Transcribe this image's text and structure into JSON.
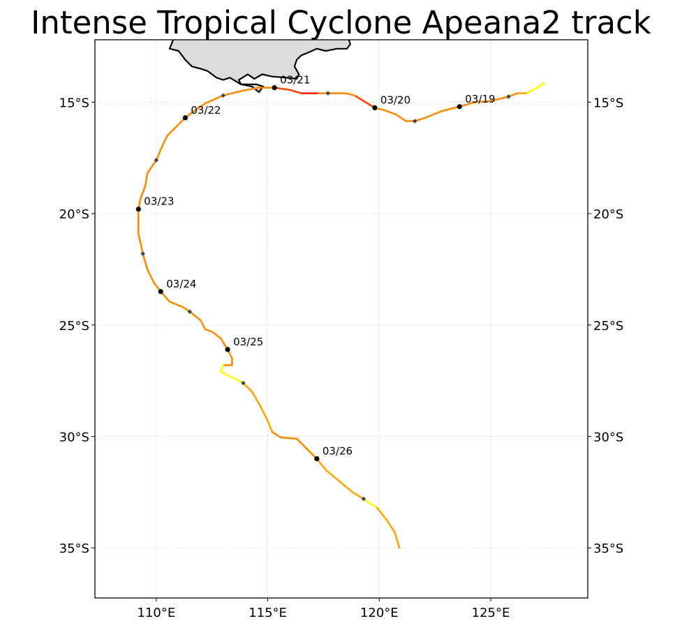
{
  "title": "Intense Tropical Cyclone Apeana2 track",
  "map": {
    "lon_range": [
      107.25,
      129.35
    ],
    "lat_range": [
      -37.25,
      -12.2
    ],
    "lon_ticks": [
      {
        "value": 110,
        "label": "110°E"
      },
      {
        "value": 115,
        "label": "115°E"
      },
      {
        "value": 120,
        "label": "120°E"
      },
      {
        "value": 125,
        "label": "125°E"
      }
    ],
    "lat_ticks": [
      {
        "value": -15,
        "label": "15°S"
      },
      {
        "value": -20,
        "label": "20°S"
      },
      {
        "value": -25,
        "label": "25°S"
      },
      {
        "value": -30,
        "label": "30°S"
      },
      {
        "value": -35,
        "label": "35°S"
      }
    ],
    "grid": true,
    "land_color": "#dcdcdc",
    "coast_color": "#000000",
    "land_polygon": [
      [
        110.8,
        -12.1
      ],
      [
        110.6,
        -12.6
      ],
      [
        111.0,
        -12.7
      ],
      [
        111.3,
        -13.1
      ],
      [
        111.6,
        -13.4
      ],
      [
        112.0,
        -13.5
      ],
      [
        112.3,
        -13.6
      ],
      [
        112.7,
        -13.9
      ],
      [
        113.0,
        -14.0
      ],
      [
        113.3,
        -13.9
      ],
      [
        113.8,
        -14.2
      ],
      [
        114.3,
        -14.2
      ],
      [
        114.5,
        -14.2
      ],
      [
        114.8,
        -14.3
      ],
      [
        114.6,
        -14.55
      ],
      [
        114.3,
        -14.3
      ],
      [
        113.8,
        -14.2
      ],
      [
        113.7,
        -14.0
      ],
      [
        113.95,
        -13.85
      ],
      [
        114.1,
        -13.75
      ],
      [
        114.4,
        -13.95
      ],
      [
        114.75,
        -13.75
      ],
      [
        115.2,
        -13.85
      ],
      [
        115.8,
        -13.9
      ],
      [
        116.3,
        -13.95
      ],
      [
        116.4,
        -13.75
      ],
      [
        116.2,
        -13.4
      ],
      [
        116.3,
        -13.1
      ],
      [
        116.5,
        -12.9
      ],
      [
        116.75,
        -12.8
      ],
      [
        117.2,
        -12.6
      ],
      [
        117.6,
        -12.7
      ],
      [
        118.1,
        -12.6
      ],
      [
        118.55,
        -12.6
      ],
      [
        118.7,
        -12.4
      ],
      [
        118.6,
        -12.1
      ]
    ]
  },
  "track": {
    "points": [
      {
        "lon": 127.4,
        "lat": -14.15,
        "c": "#ffff00"
      },
      {
        "lon": 127.0,
        "lat": -14.4,
        "c": "#ffff00"
      },
      {
        "lon": 126.6,
        "lat": -14.6,
        "c": "#ffa500"
      },
      {
        "lon": 126.2,
        "lat": -14.6,
        "c": "#ff8c00"
      },
      {
        "lon": 125.8,
        "lat": -14.75,
        "c": "#ff8c00"
      },
      {
        "lon": 125.0,
        "lat": -14.95,
        "c": "#ff8c00"
      },
      {
        "lon": 124.3,
        "lat": -15.0,
        "c": "#ff8c00"
      },
      {
        "lon": 123.6,
        "lat": -15.2,
        "c": "#ff8c00"
      },
      {
        "lon": 122.8,
        "lat": -15.4,
        "c": "#ff8c00"
      },
      {
        "lon": 122.2,
        "lat": -15.65,
        "c": "#ff8c00"
      },
      {
        "lon": 121.6,
        "lat": -15.85,
        "c": "#ff8c00"
      },
      {
        "lon": 121.2,
        "lat": -15.85,
        "c": "#ff8c00"
      },
      {
        "lon": 120.75,
        "lat": -15.55,
        "c": "#ff8c00"
      },
      {
        "lon": 120.2,
        "lat": -15.35,
        "c": "#ff8c00"
      },
      {
        "lon": 119.8,
        "lat": -15.25,
        "c": "#ff4500"
      },
      {
        "lon": 119.3,
        "lat": -14.95,
        "c": "#ff4500"
      },
      {
        "lon": 118.9,
        "lat": -14.7,
        "c": "#ff8c00"
      },
      {
        "lon": 118.5,
        "lat": -14.6,
        "c": "#ff8c00"
      },
      {
        "lon": 117.7,
        "lat": -14.6,
        "c": "#ff8c00"
      },
      {
        "lon": 117.2,
        "lat": -14.6,
        "c": "#ff2000"
      },
      {
        "lon": 116.5,
        "lat": -14.6,
        "c": "#ff4500"
      },
      {
        "lon": 116.0,
        "lat": -14.45,
        "c": "#ff4500"
      },
      {
        "lon": 115.3,
        "lat": -14.35,
        "c": "#ff8c00"
      },
      {
        "lon": 114.6,
        "lat": -14.35,
        "c": "#ff8c00"
      },
      {
        "lon": 113.8,
        "lat": -14.5,
        "c": "#ff8c00"
      },
      {
        "lon": 113.0,
        "lat": -14.7,
        "c": "#ff8c00"
      },
      {
        "lon": 112.2,
        "lat": -15.05,
        "c": "#ff8c00"
      },
      {
        "lon": 111.7,
        "lat": -15.4,
        "c": "#ff8c00"
      },
      {
        "lon": 111.3,
        "lat": -15.7,
        "c": "#ff8c00"
      },
      {
        "lon": 110.9,
        "lat": -16.1,
        "c": "#ff8c00"
      },
      {
        "lon": 110.5,
        "lat": -16.5,
        "c": "#ff8c00"
      },
      {
        "lon": 110.3,
        "lat": -16.9,
        "c": "#ff8c00"
      },
      {
        "lon": 110.0,
        "lat": -17.6,
        "c": "#ff8c00"
      },
      {
        "lon": 109.6,
        "lat": -18.2,
        "c": "#ff8c00"
      },
      {
        "lon": 109.5,
        "lat": -18.8,
        "c": "#ff8c00"
      },
      {
        "lon": 109.3,
        "lat": -19.3,
        "c": "#ff8c00"
      },
      {
        "lon": 109.2,
        "lat": -19.8,
        "c": "#ff8c00"
      },
      {
        "lon": 109.2,
        "lat": -20.9,
        "c": "#ff8c00"
      },
      {
        "lon": 109.4,
        "lat": -21.8,
        "c": "#ff8c00"
      },
      {
        "lon": 109.6,
        "lat": -22.5,
        "c": "#ff8c00"
      },
      {
        "lon": 109.9,
        "lat": -23.1,
        "c": "#ff8c00"
      },
      {
        "lon": 110.2,
        "lat": -23.5,
        "c": "#ff8c00"
      },
      {
        "lon": 110.6,
        "lat": -23.95,
        "c": "#ff8c00"
      },
      {
        "lon": 111.2,
        "lat": -24.2,
        "c": "#ff8c00"
      },
      {
        "lon": 111.5,
        "lat": -24.4,
        "c": "#ff8c00"
      },
      {
        "lon": 112.0,
        "lat": -24.8,
        "c": "#ff8c00"
      },
      {
        "lon": 112.2,
        "lat": -25.2,
        "c": "#ff8c00"
      },
      {
        "lon": 112.5,
        "lat": -25.3,
        "c": "#ff8c00"
      },
      {
        "lon": 112.9,
        "lat": -25.6,
        "c": "#ff8c00"
      },
      {
        "lon": 113.2,
        "lat": -26.1,
        "c": "#ff8c00"
      },
      {
        "lon": 113.4,
        "lat": -26.5,
        "c": "#ff8c00"
      },
      {
        "lon": 113.4,
        "lat": -26.8,
        "c": "#ff8c00"
      },
      {
        "lon": 113.0,
        "lat": -26.8,
        "c": "#ffff00"
      },
      {
        "lon": 112.9,
        "lat": -27.1,
        "c": "#ffff00"
      },
      {
        "lon": 113.3,
        "lat": -27.3,
        "c": "#ffff00"
      },
      {
        "lon": 113.9,
        "lat": -27.6,
        "c": "#ffa500"
      },
      {
        "lon": 114.3,
        "lat": -28.0,
        "c": "#ffa500"
      },
      {
        "lon": 114.7,
        "lat": -28.7,
        "c": "#ffa500"
      },
      {
        "lon": 115.0,
        "lat": -29.3,
        "c": "#ffa500"
      },
      {
        "lon": 115.2,
        "lat": -29.8,
        "c": "#ff8c00"
      },
      {
        "lon": 115.6,
        "lat": -30.05,
        "c": "#ff8c00"
      },
      {
        "lon": 116.3,
        "lat": -30.1,
        "c": "#ff8c00"
      },
      {
        "lon": 116.7,
        "lat": -30.5,
        "c": "#ff8c00"
      },
      {
        "lon": 117.2,
        "lat": -31.0,
        "c": "#ffa500"
      },
      {
        "lon": 117.6,
        "lat": -31.5,
        "c": "#ffa500"
      },
      {
        "lon": 118.2,
        "lat": -32.0,
        "c": "#ffa500"
      },
      {
        "lon": 118.8,
        "lat": -32.5,
        "c": "#ffa500"
      },
      {
        "lon": 119.3,
        "lat": -32.8,
        "c": "#ffff00"
      },
      {
        "lon": 119.9,
        "lat": -33.2,
        "c": "#ffa500"
      },
      {
        "lon": 120.3,
        "lat": -33.7,
        "c": "#ffa500"
      },
      {
        "lon": 120.7,
        "lat": -34.3,
        "c": "#ffa500"
      },
      {
        "lon": 120.9,
        "lat": -35.0,
        "c": "#ffa500"
      }
    ],
    "day_markers": [
      {
        "label": "03/19",
        "lon": 123.6,
        "lat": -15.2
      },
      {
        "label": "03/20",
        "lon": 119.8,
        "lat": -15.25
      },
      {
        "label": "03/21",
        "lon": 115.3,
        "lat": -14.35
      },
      {
        "label": "03/22",
        "lon": 111.3,
        "lat": -15.7
      },
      {
        "label": "03/23",
        "lon": 109.2,
        "lat": -19.8
      },
      {
        "label": "03/24",
        "lon": 110.2,
        "lat": -23.5
      },
      {
        "label": "03/25",
        "lon": 113.2,
        "lat": -26.1
      },
      {
        "label": "03/26",
        "lon": 117.2,
        "lat": -31.0
      }
    ],
    "half_day_markers": [
      {
        "lon": 125.8,
        "lat": -14.75
      },
      {
        "lon": 121.6,
        "lat": -15.85
      },
      {
        "lon": 117.7,
        "lat": -14.6
      },
      {
        "lon": 113.0,
        "lat": -14.7
      },
      {
        "lon": 110.0,
        "lat": -17.6
      },
      {
        "lon": 109.4,
        "lat": -21.8
      },
      {
        "lon": 111.5,
        "lat": -24.4
      },
      {
        "lon": 113.9,
        "lat": -27.6
      },
      {
        "lon": 119.3,
        "lat": -32.8
      }
    ]
  }
}
